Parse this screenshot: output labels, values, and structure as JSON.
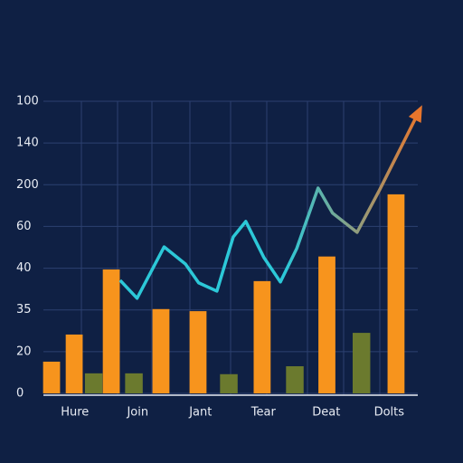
{
  "chart_data": {
    "type": "bar-line",
    "categories": [
      "Hure",
      "Join",
      "Jant",
      "Tear",
      "Deat",
      "Dolts"
    ],
    "xlim": [
      -0.5,
      5.6
    ],
    "ylim": [
      0,
      7
    ],
    "yticks": [
      {
        "value": 0,
        "label": "0"
      },
      {
        "value": 1,
        "label": "20"
      },
      {
        "value": 2,
        "label": "35"
      },
      {
        "value": 3,
        "label": "40"
      },
      {
        "value": 4,
        "label": "60"
      },
      {
        "value": 5,
        "label": "200"
      },
      {
        "value": 6,
        "label": "140"
      },
      {
        "value": 7,
        "label": "100"
      }
    ],
    "grid": true,
    "series": [
      {
        "type": "bar",
        "color": "#f7941d",
        "x": [
          -0.37,
          -0.01,
          0.58,
          1.37,
          1.96,
          2.98,
          4.01,
          5.11
        ],
        "values": [
          0.76,
          1.41,
          2.97,
          2.02,
          1.97,
          2.69,
          3.28,
          4.77
        ]
      },
      {
        "type": "bar",
        "color": "#6b7a2e",
        "x": [
          0.3,
          0.94,
          2.45,
          3.5,
          4.56
        ],
        "values": [
          0.48,
          0.48,
          0.46,
          0.65,
          1.45
        ]
      },
      {
        "type": "line",
        "color": "#e8762c",
        "x": [
          0.72,
          0.99,
          1.42,
          1.76,
          1.97,
          2.26,
          2.52,
          2.72,
          3.01,
          3.27,
          3.53,
          3.87,
          4.1,
          4.49,
          4.85,
          5.5
        ],
        "values": [
          2.71,
          2.28,
          3.51,
          3.1,
          2.65,
          2.45,
          3.75,
          4.12,
          3.25,
          2.67,
          3.47,
          4.92,
          4.32,
          3.86,
          4.88,
          6.83
        ]
      }
    ]
  }
}
